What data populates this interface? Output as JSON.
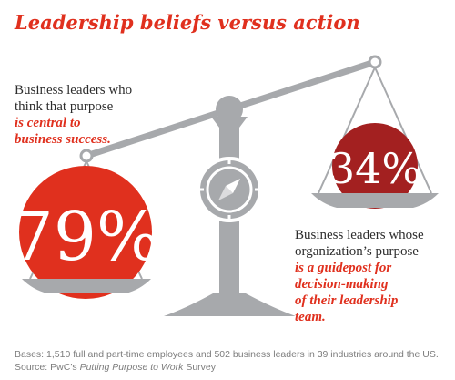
{
  "title": "Leadership beliefs versus action",
  "chart_data": {
    "type": "pie",
    "series": [
      {
        "value": 79,
        "label": "79%",
        "caption_plain": [
          "Business leaders who",
          "think that purpose"
        ],
        "caption_emph": [
          "is central to",
          "business success."
        ],
        "color": "#e0301e"
      },
      {
        "value": 34,
        "label": "34%",
        "caption_plain": [
          "Business leaders whose",
          "organization’s purpose"
        ],
        "caption_emph": [
          "is a guidepost for",
          "decision-making",
          "of their leadership",
          "team."
        ],
        "color": "#a32020"
      }
    ]
  },
  "footnote": {
    "bases": "Bases: 1,510 full and part-time employees and 502 business leaders in 39 industries around the US.",
    "source_prefix": "Source: PwC’s ",
    "source_title": "Putting Purpose to Work",
    "source_suffix": " Survey"
  },
  "colors": {
    "accent_red": "#e0301e",
    "dark_red": "#a32020",
    "scale_grey": "#a7a9ac",
    "text": "#2d2d2d",
    "footnote": "#7d7d7d"
  }
}
